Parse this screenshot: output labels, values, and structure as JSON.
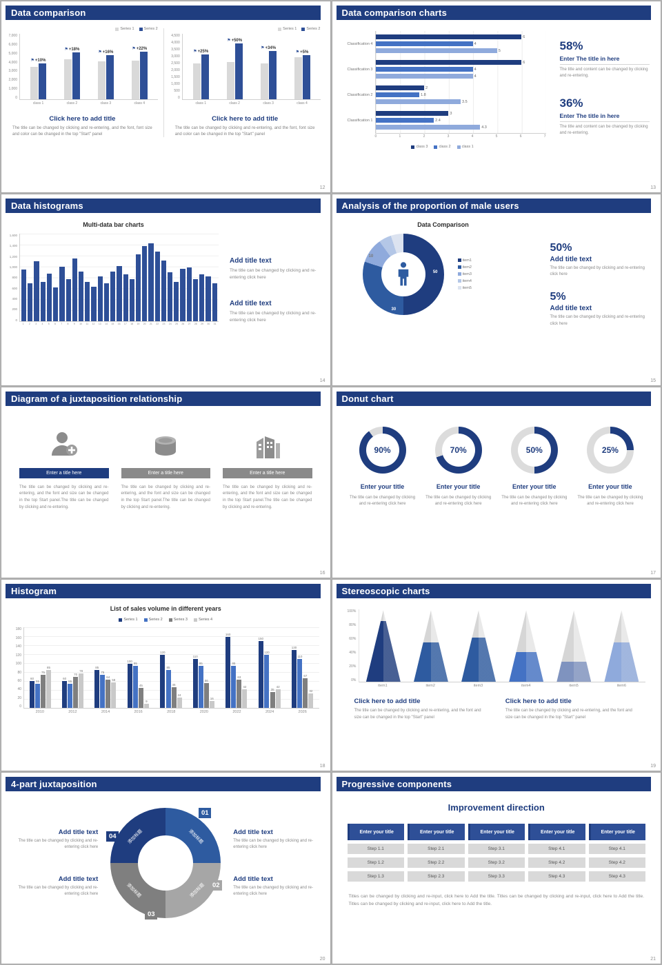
{
  "colors": {
    "header_bg": "#1f3d7f",
    "navy": "#1f3d7f",
    "blue": "#2e4f97",
    "mid_blue": "#4472c4",
    "light_blue": "#8faadc",
    "bar_gray": "#d9d9d9",
    "mid_gray": "#a6a6a6",
    "dark_gray": "#7f7f7f"
  },
  "slides": {
    "s12": {
      "title": "Data comparison",
      "page": "12",
      "caption_title": "Click here to add title",
      "caption_text": "The title can be changed by clicking and re-entering, and the font, font size and color can be changed in the top \"Start\" panel",
      "chart_data": [
        {
          "type": "bar",
          "legend": [
            "Series 1",
            "Series 2"
          ],
          "bar_colors": [
            "#d9d9d9",
            "#2e4f97"
          ],
          "y_ticks": [
            "7,000",
            "6,000",
            "5,000",
            "4,000",
            "3,000",
            "2,000",
            "1,000",
            "0"
          ],
          "ymax": 7000,
          "categories": [
            "class 1",
            "class 2",
            "class 3",
            "class 4"
          ],
          "series1": [
            3500,
            4300,
            4100,
            4200
          ],
          "series2": [
            3850,
            5074,
            4756,
            5124
          ],
          "growth": [
            "+10%",
            "+18%",
            "+16%",
            "+22%"
          ]
        },
        {
          "type": "bar",
          "legend": [
            "Series 1",
            "Series 2"
          ],
          "bar_colors": [
            "#d9d9d9",
            "#2e4f97"
          ],
          "y_ticks": [
            "4,500",
            "4,000",
            "3,500",
            "3,000",
            "2,500",
            "2,000",
            "1,500",
            "1,000",
            "500",
            "0"
          ],
          "ymax": 4500,
          "categories": [
            "class 1",
            "class 2",
            "class 3",
            "class 4"
          ],
          "series1": [
            2500,
            2600,
            2500,
            2900
          ],
          "series2": [
            3125,
            3900,
            3350,
            3045
          ],
          "growth": [
            "+25%",
            "+50%",
            "+34%",
            "+5%"
          ]
        }
      ]
    },
    "s13": {
      "title": "Data comparison charts",
      "page": "13",
      "chart_data": {
        "type": "bar",
        "orientation": "horizontal",
        "categories": [
          "Classification 4",
          "Classification 3",
          "Classification 2",
          "Classification 1"
        ],
        "series": [
          "class 3",
          "class 2",
          "class 1"
        ],
        "colors": [
          "#1f3d7f",
          "#4472c4",
          "#8faadc"
        ],
        "values": [
          [
            6,
            4,
            5
          ],
          [
            6,
            4,
            4
          ],
          [
            2,
            1.8,
            3.5
          ],
          [
            3,
            2.4,
            4.3
          ]
        ],
        "xmax": 7,
        "x_ticks": [
          "0",
          "1",
          "2",
          "3",
          "4",
          "5",
          "6",
          "7"
        ]
      },
      "stats": [
        {
          "pct": "58%",
          "title": "Enter The title in here",
          "text": "The title and content can be changed by clicking and re-entering."
        },
        {
          "pct": "36%",
          "title": "Enter The title in here",
          "text": "The title and content can be changed by clicking and re-entering."
        }
      ]
    },
    "s14": {
      "title": "Data histograms",
      "page": "14",
      "chart_title": "Multi-data bar charts",
      "chart_data": {
        "type": "bar",
        "bar_color": "#2e4f97",
        "y_ticks": [
          "1,600",
          "1,400",
          "1,200",
          "1,000",
          "800",
          "600",
          "400",
          "200",
          "0"
        ],
        "ymax": 1600,
        "x_labels": [
          "1",
          "2",
          "3",
          "4",
          "5",
          "6",
          "7",
          "8",
          "9",
          "10",
          "11",
          "12",
          "13",
          "14",
          "15",
          "16",
          "17",
          "18",
          "19",
          "20",
          "21",
          "22",
          "23",
          "24",
          "25",
          "26",
          "27",
          "28",
          "29",
          "30",
          "31"
        ],
        "values": [
          950,
          700,
          1100,
          720,
          880,
          620,
          1000,
          780,
          1150,
          920,
          730,
          640,
          820,
          700,
          910,
          1010,
          860,
          780,
          1230,
          1380,
          1430,
          1280,
          1120,
          900,
          720,
          960,
          990,
          770,
          860,
          820,
          700
        ]
      },
      "blocks": [
        {
          "title": "Add title text",
          "text": "The title can be changed by clicking and re-entering click here"
        },
        {
          "title": "Add title text",
          "text": "The title can be changed by clicking and re-entering click here"
        }
      ]
    },
    "s15": {
      "title": "Analysis of the proportion of male users",
      "page": "15",
      "chart_title": "Data Comparison",
      "chart_data": {
        "type": "pie",
        "items": [
          "item1",
          "item2",
          "item3",
          "item4",
          "item5"
        ],
        "values": [
          50,
          30,
          10,
          5,
          5
        ],
        "colors": [
          "#1f3d7f",
          "#2e5ba0",
          "#8faadc",
          "#b4c7e7",
          "#dce3f0"
        ],
        "seg_labels": [
          "50",
          "30",
          "10"
        ]
      },
      "stats": [
        {
          "pct": "50%",
          "title": "Add title text",
          "text": "The title can be changed by clicking and re-entering click here"
        },
        {
          "pct": "5%",
          "title": "Add title text",
          "text": "The title can be changed by clicking and re-entering click here"
        }
      ]
    },
    "s16": {
      "title": "Diagram of a juxtaposition relationship",
      "page": "16",
      "items": [
        {
          "icon": "nurse-icon",
          "bar": "Enter a title here",
          "text": "The title can be changed by clicking and re-entering, and the font and size can be changed in the top Start panel.The title can be changed by clicking and re-entering."
        },
        {
          "icon": "database-icon",
          "bar": "Enter a title here",
          "text": "The title can be changed by clicking and re-entering, and the font and size can be changed in the top Start panel.The title can be changed by clicking and re-entering."
        },
        {
          "icon": "building-icon",
          "bar": "Enter a title here",
          "text": "The title can be changed by clicking and re-entering, and the font and size can be changed in the top Start panel.The title can be changed by clicking and re-entering."
        }
      ]
    },
    "s17": {
      "title": "Donut chart",
      "page": "17",
      "ring_color": "#1f3d7f",
      "track_color": "#dcdcdc",
      "items": [
        {
          "pct": "90%",
          "title": "Enter your title",
          "text": "The title can be changed by clicking and re-entering click here"
        },
        {
          "pct": "70%",
          "title": "Enter your title",
          "text": "The title can be changed by clicking and re-entering click here"
        },
        {
          "pct": "50%",
          "title": "Enter your title",
          "text": "The title can be changed by clicking and re-entering click here"
        },
        {
          "pct": "25%",
          "title": "Enter your title",
          "text": "The title can be changed by clicking and re-entering click here"
        }
      ]
    },
    "s18": {
      "title": "Histogram",
      "page": "18",
      "chart_title": "List of sales volume in different years",
      "chart_data": {
        "type": "bar",
        "legend": [
          "Series 1",
          "Series 2",
          "Series 3",
          "Series 4"
        ],
        "colors": [
          "#1f3d7f",
          "#4472c4",
          "#7f7f7f",
          "#c9c9c9"
        ],
        "categories": [
          "2010",
          "2012",
          "2014",
          "2016",
          "2018",
          "2020",
          "2022",
          "2024",
          "2026"
        ],
        "series": [
          {
            "name": "Series 1",
            "values": [
              60,
              60,
              85,
              100,
              120,
              110,
              160,
              150,
              130
            ]
          },
          {
            "name": "Series 2",
            "values": [
              55,
              55,
              75,
              95,
              85,
              95,
              95,
              120,
              110
            ]
          },
          {
            "name": "Series 3",
            "values": [
              75,
              70,
              64,
              45,
              46,
              56,
              63,
              35,
              67
            ]
          },
          {
            "name": "Series 4",
            "values": [
              85,
              78,
              58,
              9,
              24,
              16,
              42,
              42,
              32
            ]
          }
        ],
        "ymax": 180,
        "y_ticks": [
          "180",
          "160",
          "140",
          "120",
          "100",
          "80",
          "60",
          "40",
          "20",
          "0"
        ]
      }
    },
    "s19": {
      "title": "Stereoscopic charts",
      "page": "19",
      "chart_data": {
        "type": "cone",
        "y_ticks": [
          "100%",
          "80%",
          "60%",
          "40%",
          "20%",
          "0%"
        ],
        "items": [
          {
            "label": "item1",
            "pct": 85,
            "color": "#1f3d7f"
          },
          {
            "label": "item2",
            "pct": 55,
            "color": "#2e5ba0"
          },
          {
            "label": "item3",
            "pct": 62,
            "color": "#2e5ba0"
          },
          {
            "label": "item4",
            "pct": 42,
            "color": "#4472c4"
          },
          {
            "label": "item5",
            "pct": 28,
            "color": "#7f93bf"
          },
          {
            "label": "item6",
            "pct": 55,
            "color": "#8faadc"
          }
        ]
      },
      "captions": [
        {
          "title": "Click here to add title",
          "text": "The title can be changed by clicking and re-entering, and the font and size can be changed in the top \"Start\" panel"
        },
        {
          "title": "Click here to add title",
          "text": "The title can be changed by clicking and re-entering, and the font and size can be changed in the top \"Start\" panel"
        }
      ]
    },
    "s20": {
      "title": "4-part juxtaposition",
      "page": "20",
      "segments": [
        {
          "num": "01",
          "label": "添加标题",
          "color": "#2e5ba0"
        },
        {
          "num": "02",
          "label": "添加标题",
          "color": "#a6a6a6"
        },
        {
          "num": "03",
          "label": "添加标题",
          "color": "#7f7f7f"
        },
        {
          "num": "04",
          "label": "添加标题",
          "color": "#1f3d7f"
        }
      ],
      "blocks": [
        {
          "title": "Add title text",
          "text": "The title can be changed by clicking and re-entering click here"
        },
        {
          "title": "Add title text",
          "text": "The title can be changed by clicking and re-entering click here"
        },
        {
          "title": "Add title text",
          "text": "The title can be changed by clicking and re-entering click here"
        },
        {
          "title": "Add title text",
          "text": "The title can be changed by clicking and re-entering click here"
        }
      ]
    },
    "s21": {
      "title": "Progressive components",
      "page": "21",
      "heading": "Improvement direction",
      "columns": [
        {
          "title": "Enter your title",
          "steps": [
            "Step 1.1",
            "Step 1.2",
            "Step 1.3"
          ]
        },
        {
          "title": "Enter your title",
          "steps": [
            "Step 2.1",
            "Step 2.2",
            "Step 2.3"
          ]
        },
        {
          "title": "Enter your title",
          "steps": [
            "Step 3.1",
            "Step 3.2",
            "Step 3.3"
          ]
        },
        {
          "title": "Enter your title",
          "steps": [
            "Step 4.1",
            "Step 4.2",
            "Step 4.3"
          ]
        },
        {
          "title": "Enter your title",
          "steps": [
            "Step 4.1",
            "Step 4.2",
            "Step 4.3"
          ]
        }
      ],
      "note": "Titles can be changed by clicking and re-input, click here to Add the title. Titles can be changed by clicking and re-input, click here to Add the title. Titles can be changed by clicking and re-input, click here to Add the title."
    }
  }
}
